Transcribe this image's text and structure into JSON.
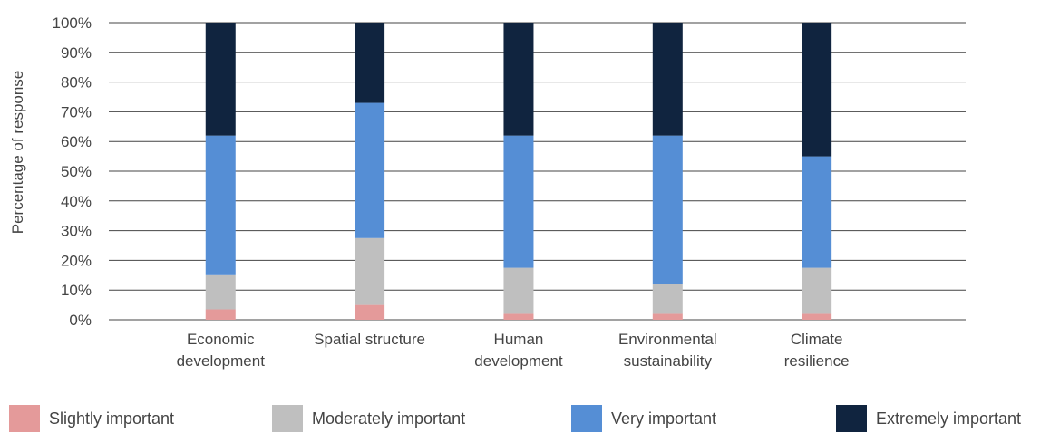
{
  "chart_data": {
    "type": "bar",
    "stacked": true,
    "categories": [
      [
        "Economic",
        "development"
      ],
      [
        "Spatial structure"
      ],
      [
        "Human",
        "development"
      ],
      [
        "Environmental",
        "sustainability"
      ],
      [
        "Climate",
        "resilience"
      ]
    ],
    "ylabel": "Percentage of response",
    "ylim": [
      0,
      100
    ],
    "yticks": [
      "0%",
      "10%",
      "20%",
      "30%",
      "40%",
      "50%",
      "60%",
      "70%",
      "80%",
      "90%",
      "100%"
    ],
    "grid": true,
    "legend_position": "bottom",
    "series": [
      {
        "name": "Slightly important",
        "color": "#e49a9a",
        "values": [
          3.5,
          5,
          2,
          2,
          2
        ]
      },
      {
        "name": "Moderately important",
        "color": "#bfbfbf",
        "values": [
          11.5,
          22.5,
          15.5,
          10,
          15.5
        ]
      },
      {
        "name": "Very important",
        "color": "#558ed5",
        "values": [
          47,
          45.5,
          44.5,
          50,
          37.5
        ]
      },
      {
        "name": "Extremely important",
        "color": "#10243f",
        "values": [
          38,
          27,
          38,
          38,
          45
        ]
      }
    ]
  },
  "legend": {
    "items": [
      "Slightly important",
      "Moderately important",
      "Very important",
      "Extremely important"
    ]
  }
}
